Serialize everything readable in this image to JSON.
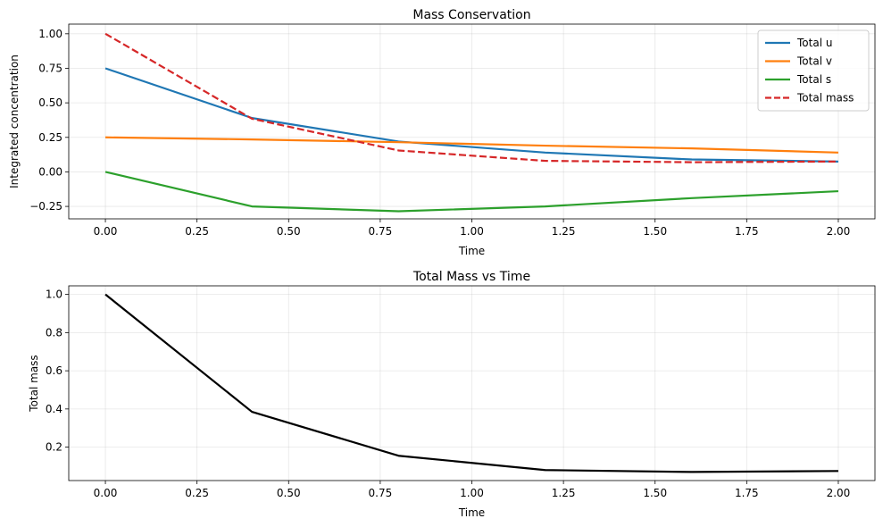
{
  "chart_data": [
    {
      "type": "line",
      "title": "Mass Conservation",
      "xlabel": "Time",
      "ylabel": "Integrated concentration",
      "xlim": [
        -0.1,
        2.1
      ],
      "ylim": [
        -0.34,
        1.07
      ],
      "xticks": [
        0.0,
        0.25,
        0.5,
        0.75,
        1.0,
        1.25,
        1.5,
        1.75,
        2.0
      ],
      "xtick_labels": [
        "0.00",
        "0.25",
        "0.50",
        "0.75",
        "1.00",
        "1.25",
        "1.50",
        "1.75",
        "2.00"
      ],
      "yticks": [
        -0.25,
        0.0,
        0.25,
        0.5,
        0.75,
        1.0
      ],
      "ytick_labels": [
        "−0.25",
        "0.00",
        "0.25",
        "0.50",
        "0.75",
        "1.00"
      ],
      "grid": true,
      "legend_position": "top-right",
      "x": [
        0.0,
        0.4,
        0.8,
        1.2,
        1.6,
        2.0
      ],
      "series": [
        {
          "name": "Total u",
          "color": "#1f77b4",
          "dash": "solid",
          "values": [
            0.75,
            0.39,
            0.22,
            0.14,
            0.09,
            0.075
          ]
        },
        {
          "name": "Total v",
          "color": "#ff7f0e",
          "dash": "solid",
          "values": [
            0.25,
            0.235,
            0.215,
            0.19,
            0.17,
            0.14
          ]
        },
        {
          "name": "Total s",
          "color": "#2ca02c",
          "dash": "solid",
          "values": [
            0.0,
            -0.25,
            -0.285,
            -0.25,
            -0.19,
            -0.14
          ]
        },
        {
          "name": "Total mass",
          "color": "#d62728",
          "dash": "dashed",
          "values": [
            1.0,
            0.385,
            0.155,
            0.08,
            0.07,
            0.075
          ]
        }
      ]
    },
    {
      "type": "line",
      "title": "Total Mass vs Time",
      "xlabel": "Time",
      "ylabel": "Total mass",
      "xlim": [
        -0.1,
        2.1
      ],
      "ylim": [
        0.025,
        1.045
      ],
      "xticks": [
        0.0,
        0.25,
        0.5,
        0.75,
        1.0,
        1.25,
        1.5,
        1.75,
        2.0
      ],
      "xtick_labels": [
        "0.00",
        "0.25",
        "0.50",
        "0.75",
        "1.00",
        "1.25",
        "1.50",
        "1.75",
        "2.00"
      ],
      "yticks": [
        0.2,
        0.4,
        0.6,
        0.8,
        1.0
      ],
      "ytick_labels": [
        "0.2",
        "0.4",
        "0.6",
        "0.8",
        "1.0"
      ],
      "grid": true,
      "x": [
        0.0,
        0.4,
        0.8,
        1.2,
        1.6,
        2.0
      ],
      "series": [
        {
          "color": "#000000",
          "dash": "solid",
          "values": [
            1.0,
            0.385,
            0.155,
            0.08,
            0.07,
            0.075
          ]
        }
      ]
    }
  ]
}
